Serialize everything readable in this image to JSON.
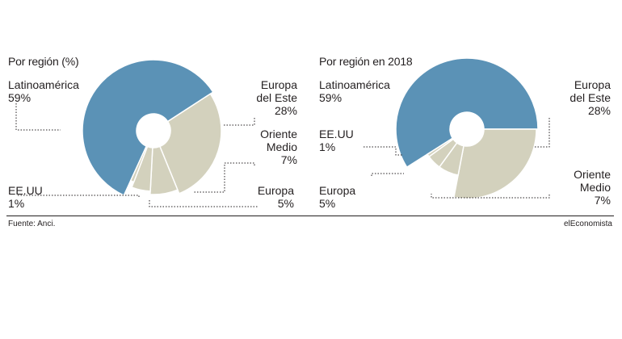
{
  "colors": {
    "accent": "#5b92b6",
    "neutral": "#d3d1bd",
    "edge": "#ffffff",
    "leader": "#231f20"
  },
  "chart_data": [
    {
      "type": "pie",
      "variant": "rose-donut",
      "title": "Por región (%)",
      "slices": [
        {
          "label": "Latinoamérica",
          "value": 59,
          "value_label": "59%"
        },
        {
          "label": "Europa del Este",
          "value": 28,
          "value_label": "28%"
        },
        {
          "label": "Oriente Medio",
          "value": 7,
          "value_label": "7%"
        },
        {
          "label": "Europa",
          "value": 5,
          "value_label": "5%"
        },
        {
          "label": "EE.UU",
          "value": 1,
          "value_label": "1%"
        }
      ]
    },
    {
      "type": "pie",
      "variant": "rose-donut",
      "title": "Por región en 2018",
      "slices": [
        {
          "label": "Latinoamérica",
          "value": 59,
          "value_label": "59%"
        },
        {
          "label": "Europa del Este",
          "value": 28,
          "value_label": "28%"
        },
        {
          "label": "Oriente Medio",
          "value": 7,
          "value_label": "7%"
        },
        {
          "label": "Europa",
          "value": 5,
          "value_label": "5%"
        },
        {
          "label": "EE.UU",
          "value": 1,
          "value_label": "1%"
        }
      ]
    }
  ],
  "labels": {
    "c1": {
      "latam_name": "Latinoamérica",
      "latam_val": "59%",
      "eeste_l1": "Europa",
      "eeste_l2": "del Este",
      "eeste_val": "28%",
      "om_l1": "Oriente",
      "om_l2": "Medio",
      "om_val": "7%",
      "eu_name": "Europa",
      "eu_val": "5%",
      "us_name": "EE.UU",
      "us_val": "1%"
    },
    "c2": {
      "latam_name": "Latinoamérica",
      "latam_val": "59%",
      "eeste_l1": "Europa",
      "eeste_l2": "del Este",
      "eeste_val": "28%",
      "om_l1": "Oriente",
      "om_l2": "Medio",
      "om_val": "7%",
      "eu_name": "Europa",
      "eu_val": "5%",
      "us_name": "EE.UU",
      "us_val": "1%"
    }
  },
  "footer": {
    "source": "Fuente: Anci.",
    "brand": "elEconomista"
  }
}
